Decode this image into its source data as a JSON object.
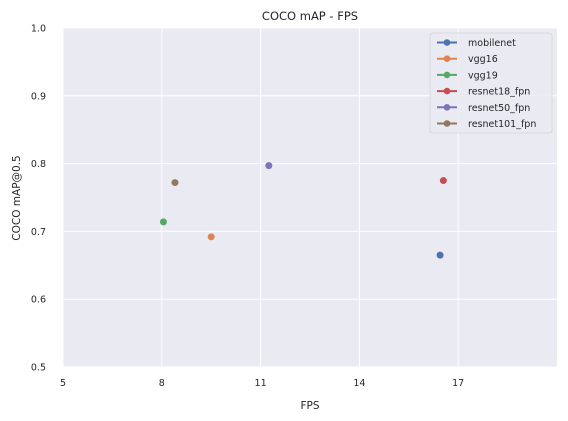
{
  "chart_data": {
    "type": "scatter",
    "title": "COCO mAP - FPS",
    "xlabel": "FPS",
    "ylabel": "COCO mAP@0.5",
    "xlim": [
      5,
      20
    ],
    "ylim": [
      0.5,
      1.0
    ],
    "xticks": [
      5,
      8,
      11,
      14,
      17
    ],
    "yticks": [
      0.5,
      0.6,
      0.7,
      0.8,
      0.9,
      1.0
    ],
    "grid": true,
    "legend_position": "top-right",
    "series": [
      {
        "name": "mobilenet",
        "color": "#4c72b0",
        "x": [
          16.45
        ],
        "y": [
          0.665
        ]
      },
      {
        "name": "vgg16",
        "color": "#dd8452",
        "x": [
          9.5
        ],
        "y": [
          0.692
        ]
      },
      {
        "name": "vgg19",
        "color": "#55a868",
        "x": [
          8.05
        ],
        "y": [
          0.714
        ]
      },
      {
        "name": "resnet18_fpn",
        "color": "#c44e52",
        "x": [
          16.55
        ],
        "y": [
          0.775
        ]
      },
      {
        "name": "resnet50_fpn",
        "color": "#8172b3",
        "x": [
          11.25
        ],
        "y": [
          0.797
        ]
      },
      {
        "name": "resnet101_fpn",
        "color": "#937860",
        "x": [
          8.4
        ],
        "y": [
          0.772
        ]
      }
    ]
  }
}
